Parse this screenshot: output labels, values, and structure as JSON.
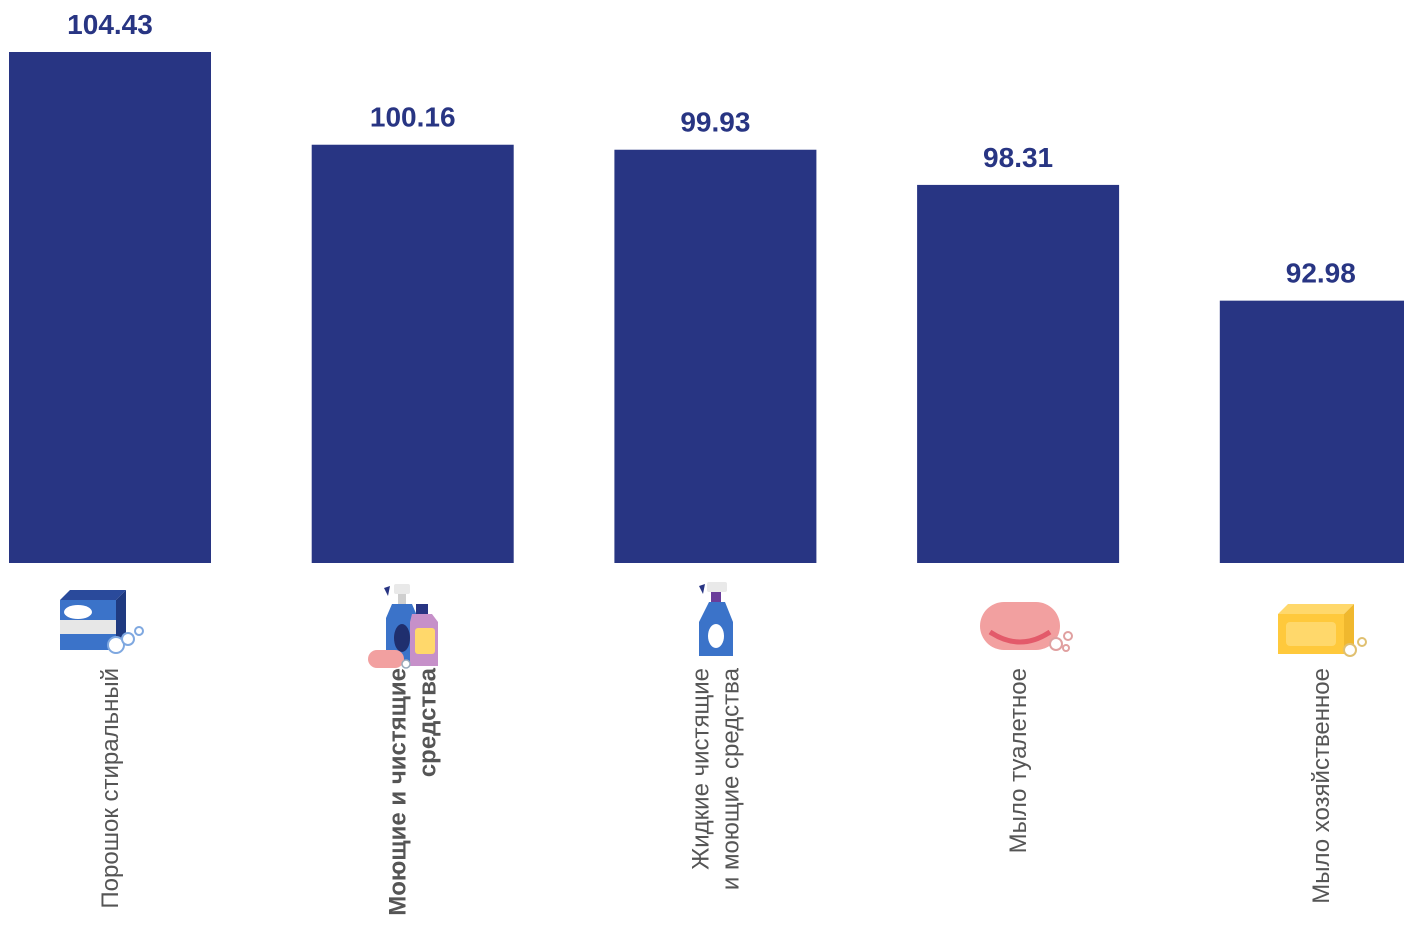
{
  "chart_data": {
    "type": "bar",
    "categories": [
      {
        "lines": [
          "Порошок стиральный"
        ],
        "bold": false,
        "icon": "detergent-powder-box-icon"
      },
      {
        "lines": [
          "Моющие и чистящие",
          "средства"
        ],
        "bold": true,
        "icon": "cleaning-products-set-icon"
      },
      {
        "lines": [
          "Жидкие чистящие",
          "и моющие средства"
        ],
        "bold": false,
        "icon": "spray-bottle-icon"
      },
      {
        "lines": [
          "Мыло туалетное"
        ],
        "bold": false,
        "icon": "toilet-soap-icon"
      },
      {
        "lines": [
          "Мыло хозяйственное"
        ],
        "bold": false,
        "icon": "laundry-soap-icon"
      }
    ],
    "values": [
      104.43,
      100.16,
      99.93,
      98.31,
      92.98
    ],
    "value_labels": [
      "104.43",
      "100.16",
      "99.93",
      "98.31",
      "92.98"
    ],
    "ylim": [
      80.9,
      104.43
    ],
    "grid": false,
    "legend": "none",
    "title": "",
    "xlabel": "",
    "ylabel": ""
  },
  "colors": {
    "bar": "#283583",
    "value_label": "#283583",
    "category_label": "#555555"
  }
}
